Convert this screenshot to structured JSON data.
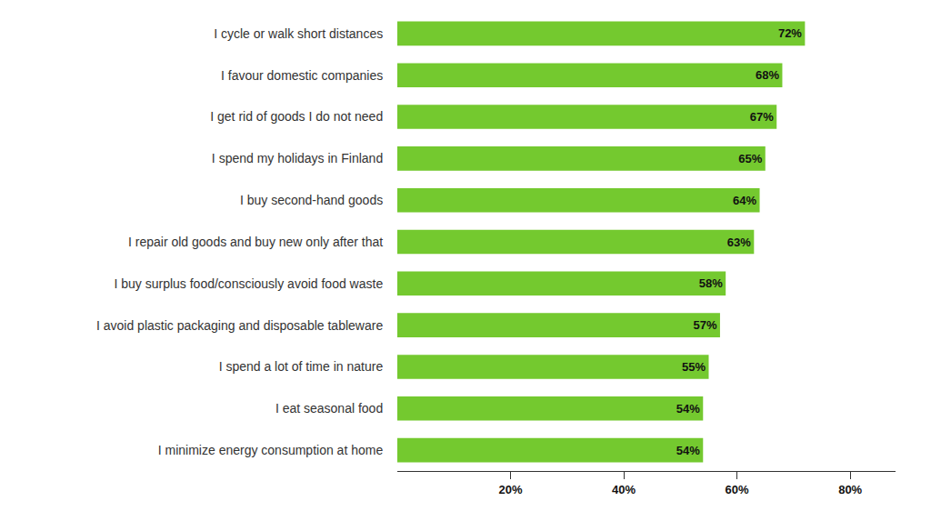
{
  "chart_data": {
    "type": "bar",
    "orientation": "horizontal",
    "categories": [
      "I cycle or walk short distances",
      "I favour domestic companies",
      "I get rid of goods I do not need",
      "I spend my holidays in Finland",
      "I buy second-hand goods",
      "I repair old goods and buy new only after that",
      "I buy surplus food/consciously avoid food waste",
      "I avoid plastic packaging and disposable tableware",
      "I spend a lot of time in nature",
      "I eat seasonal food",
      "I minimize energy consumption at home"
    ],
    "values": [
      72,
      68,
      67,
      65,
      64,
      63,
      58,
      57,
      55,
      54,
      54
    ],
    "value_labels": [
      "72%",
      "68%",
      "67%",
      "65%",
      "64%",
      "63%",
      "58%",
      "57%",
      "55%",
      "54%",
      "54%"
    ],
    "color": "#74c92f",
    "xlim": [
      0,
      88
    ],
    "xticks": [
      {
        "value": 20,
        "label": "20%"
      },
      {
        "value": 40,
        "label": "40%"
      },
      {
        "value": 60,
        "label": "60%"
      },
      {
        "value": 80,
        "label": "80%"
      }
    ],
    "grid": false,
    "data_labels": true
  }
}
